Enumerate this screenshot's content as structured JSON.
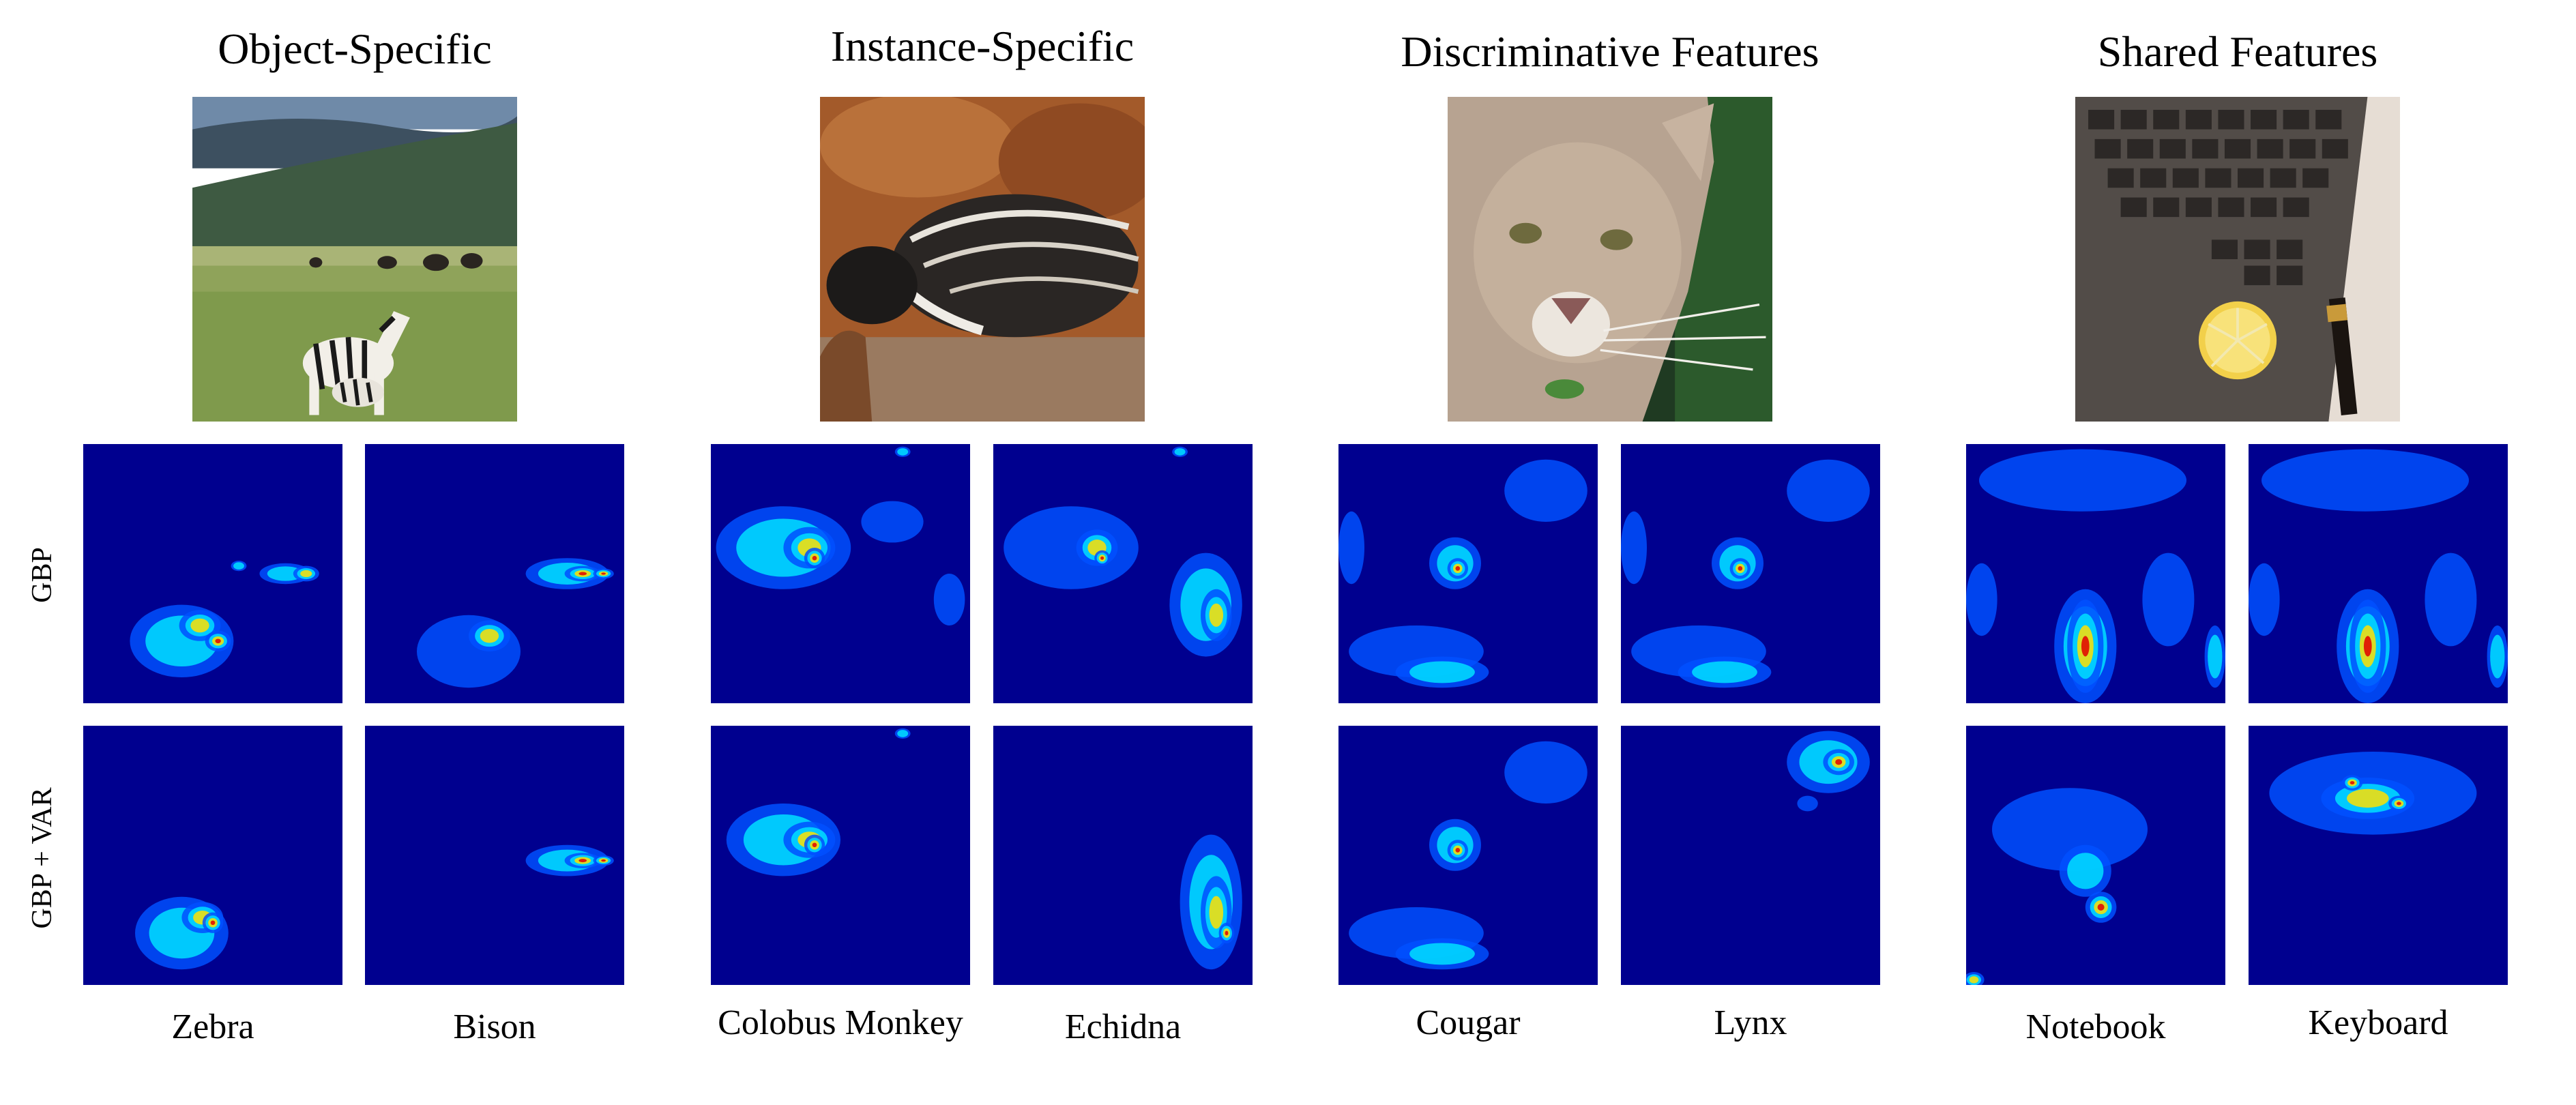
{
  "figure": {
    "groups": [
      {
        "title": "Object-Specific",
        "image_subject": "zebras and bison in a grassy plain",
        "classes": [
          "Zebra",
          "Bison"
        ]
      },
      {
        "title": "Instance-Specific",
        "image_subject": "porcupine-like animal near rocks",
        "classes": [
          "Colobus Monkey",
          "Echidna"
        ]
      },
      {
        "title": "Discriminative Features",
        "image_subject": "cougar face close-up",
        "classes": [
          "Cougar",
          "Lynx"
        ]
      },
      {
        "title": "Shared Features",
        "image_subject": "laptop keyboard with lemon slice and pen",
        "classes": [
          "Notebook",
          "Keyboard"
        ]
      }
    ],
    "row_labels": [
      "GBP",
      "GBP + VAR"
    ],
    "colors": {
      "heatmap_background": "#00008f",
      "heatmap_low": "#0050ff",
      "heatmap_mid": "#00e0ff",
      "heatmap_high": "#ffe000",
      "heatmap_peak": "#e00000"
    }
  }
}
